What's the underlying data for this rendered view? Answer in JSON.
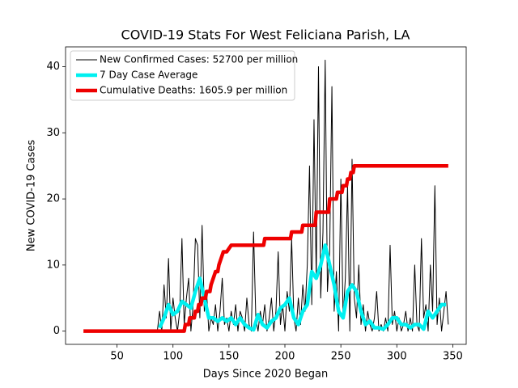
{
  "chart_data": {
    "type": "line",
    "title": "COVID-19 Stats For West Feliciana Parish, LA",
    "xlabel": "Days Since 2020 Began",
    "ylabel": "New COVID-19 Cases",
    "xlim": [
      4,
      362
    ],
    "ylim": [
      -2,
      43
    ],
    "xticks": [
      50,
      100,
      150,
      200,
      250,
      300,
      350
    ],
    "yticks": [
      0,
      10,
      20,
      30,
      40
    ],
    "legend": "upper left",
    "series": [
      {
        "name": "New Confirmed Cases: 52700 per million",
        "color": "#000000",
        "width": 1,
        "x": [
          86,
          88,
          90,
          92,
          94,
          96,
          98,
          100,
          102,
          104,
          106,
          108,
          110,
          112,
          114,
          116,
          118,
          120,
          122,
          124,
          126,
          128,
          130,
          132,
          134,
          136,
          138,
          140,
          142,
          144,
          146,
          148,
          150,
          152,
          154,
          156,
          158,
          160,
          162,
          164,
          166,
          168,
          170,
          172,
          174,
          176,
          178,
          180,
          182,
          184,
          186,
          188,
          190,
          192,
          194,
          196,
          198,
          200,
          202,
          204,
          206,
          208,
          210,
          212,
          214,
          216,
          218,
          220,
          222,
          224,
          226,
          228,
          230,
          232,
          234,
          236,
          238,
          240,
          242,
          244,
          246,
          248,
          250,
          252,
          254,
          256,
          258,
          260,
          262,
          264,
          266,
          268,
          270,
          272,
          274,
          276,
          278,
          280,
          282,
          284,
          286,
          288,
          290,
          292,
          294,
          296,
          298,
          300,
          302,
          304,
          306,
          308,
          310,
          312,
          314,
          316,
          318,
          320,
          322,
          324,
          326,
          328,
          330,
          332,
          334,
          336,
          338,
          340,
          342,
          344,
          346
        ],
        "values": [
          0,
          3,
          0,
          7,
          2,
          11,
          0,
          5,
          2,
          0,
          3,
          14,
          1,
          5,
          8,
          0,
          4,
          14,
          13,
          2,
          16,
          3,
          6,
          0,
          2,
          1,
          4,
          0,
          3,
          8,
          1,
          2,
          0,
          3,
          1,
          4,
          0,
          3,
          2,
          0,
          5,
          1,
          0,
          15,
          2,
          0,
          3,
          1,
          4,
          0,
          2,
          5,
          0,
          3,
          12,
          1,
          4,
          0,
          6,
          3,
          14,
          2,
          0,
          5,
          1,
          7,
          3,
          10,
          25,
          4,
          32,
          8,
          40,
          5,
          15,
          41,
          6,
          12,
          37,
          3,
          9,
          0,
          23,
          2,
          8,
          22,
          0,
          26,
          5,
          2,
          10,
          1,
          4,
          0,
          3,
          1,
          0,
          2,
          6,
          0,
          1,
          0,
          2,
          0,
          13,
          1,
          3,
          0,
          2,
          0,
          1,
          3,
          0,
          2,
          0,
          10,
          1,
          0,
          14,
          2,
          4,
          0,
          10,
          3,
          22,
          1,
          5,
          0,
          3,
          6,
          1
        ]
      },
      {
        "name": "7 Day Case Average",
        "color": "#00f0f0",
        "width": 4.5,
        "x": [
          88,
          92,
          96,
          100,
          104,
          108,
          112,
          116,
          120,
          124,
          128,
          132,
          136,
          140,
          144,
          148,
          152,
          156,
          160,
          164,
          168,
          172,
          176,
          180,
          184,
          188,
          192,
          196,
          200,
          204,
          208,
          212,
          216,
          220,
          224,
          228,
          232,
          236,
          240,
          244,
          248,
          252,
          256,
          260,
          264,
          268,
          272,
          276,
          280,
          284,
          288,
          292,
          296,
          300,
          304,
          308,
          312,
          316,
          320,
          324,
          328,
          332,
          336,
          340,
          344
        ],
        "values": [
          0.5,
          2,
          4,
          2.5,
          3,
          4.5,
          4,
          3.5,
          6,
          8,
          5,
          2,
          2,
          1.5,
          2,
          1.5,
          2,
          1,
          2,
          1,
          0.5,
          0.2,
          2.5,
          1,
          0.5,
          1.5,
          2,
          3.5,
          4,
          5,
          2,
          1,
          3,
          4,
          9,
          8,
          10,
          13,
          10,
          7,
          3,
          2,
          6,
          7,
          6,
          3,
          1,
          1.5,
          0.5,
          0.5,
          0.3,
          1,
          2,
          2,
          1,
          1,
          0.5,
          1,
          1,
          0.3,
          3,
          2,
          3,
          4,
          4
        ]
      },
      {
        "name": "Cumulative Deaths: 1605.9 per million",
        "color": "#ee0000",
        "width": 4.5,
        "x": [
          20,
          110,
          111,
          114,
          115,
          119,
          120,
          122,
          123,
          125,
          126,
          129,
          130,
          133,
          134,
          136,
          138,
          140,
          141,
          143,
          145,
          148,
          152,
          181,
          182,
          205,
          206,
          215,
          216,
          227,
          228,
          239,
          240,
          246,
          247,
          251,
          252,
          255,
          256,
          258,
          259,
          261,
          262,
          346
        ],
        "values": [
          0,
          0,
          1,
          1,
          2,
          2,
          3,
          3,
          4,
          4,
          5,
          5,
          6,
          6,
          7,
          8,
          9,
          9,
          10,
          11,
          12,
          12,
          13,
          13,
          14,
          14,
          15,
          15,
          16,
          16,
          18,
          18,
          20,
          20,
          21,
          21,
          22,
          22,
          23,
          23,
          24,
          24,
          25,
          25
        ]
      }
    ]
  }
}
